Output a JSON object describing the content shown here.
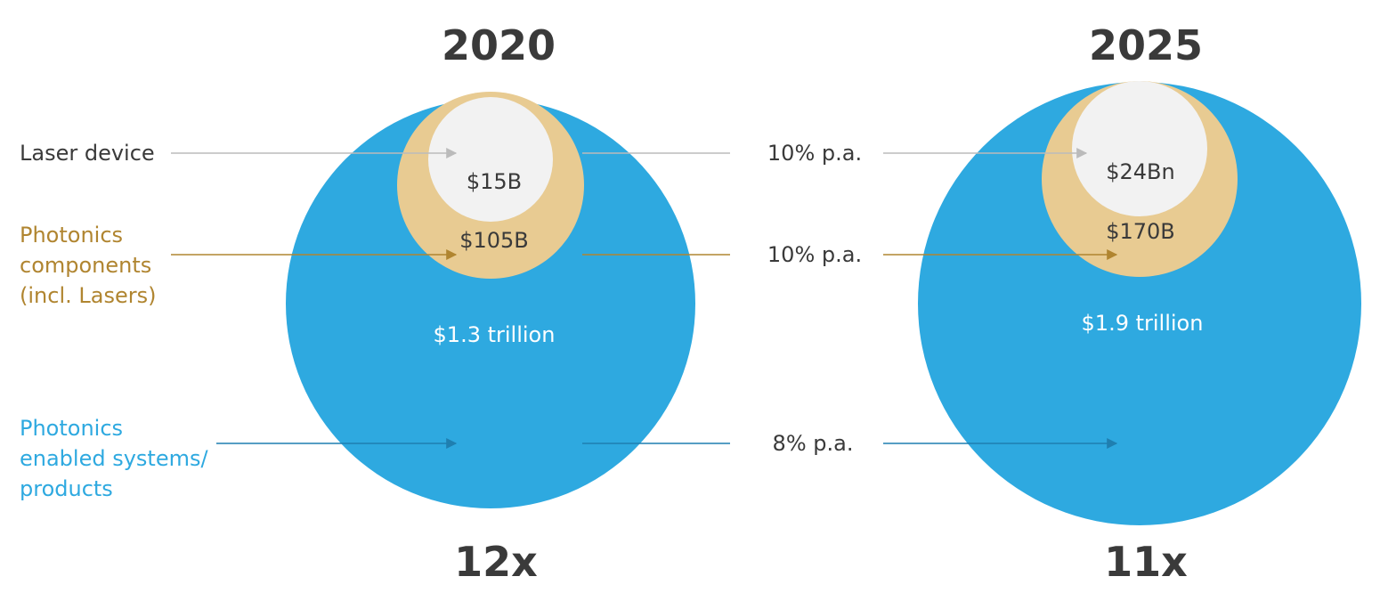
{
  "colors": {
    "systems": "#2EA9E0",
    "components": "#E8CB92",
    "laser": "#F2F2F2",
    "components_text": "#B08530",
    "systems_text": "#2EA9E0",
    "laser_text": "#3a3a3a",
    "laser_arrow": "#bbbbbb",
    "components_arrow": "#B08530",
    "systems_arrow": "#1f7fb0"
  },
  "legend": {
    "laser_device": "Laser device",
    "components": [
      "Photonics",
      "components",
      "(incl. Lasers)"
    ],
    "systems": [
      "Photonics",
      "enabled systems/",
      "products"
    ]
  },
  "years": [
    {
      "title": "2020",
      "laser_value": "$15B",
      "components_value": "$105B",
      "systems_value": "$1.3 trillion",
      "multiplier": "12x"
    },
    {
      "title": "2025",
      "laser_value": "$24Bn",
      "components_value": "$170B",
      "systems_value": "$1.9 trillion",
      "multiplier": "11x"
    }
  ],
  "growth_rates": {
    "laser": "10% p.a.",
    "components": "10% p.a.",
    "systems": "8% p.a."
  }
}
